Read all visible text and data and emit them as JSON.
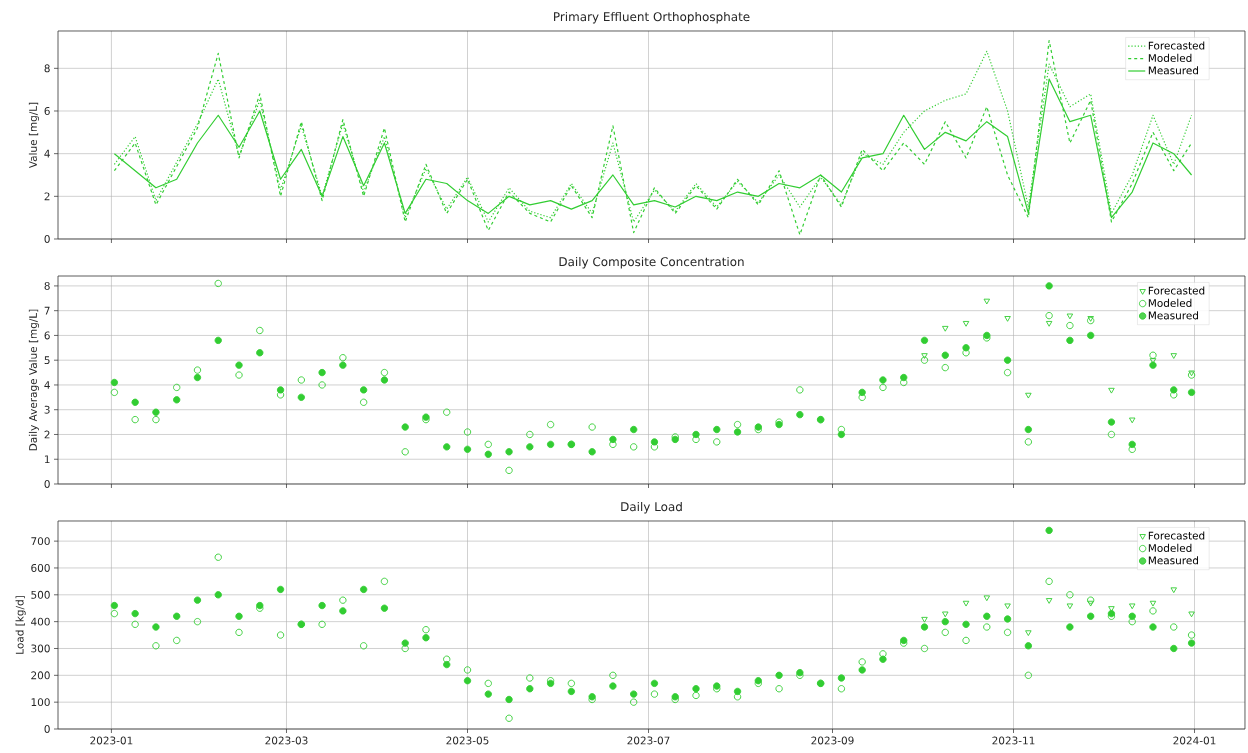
{
  "chart_data": [
    {
      "type": "line",
      "title": "Primary Effluent Orthophosphate",
      "ylabel": "Value [mg/L]",
      "x": [
        "2023-01-02",
        "2023-01-09",
        "2023-01-16",
        "2023-01-23",
        "2023-01-30",
        "2023-02-06",
        "2023-02-13",
        "2023-02-20",
        "2023-02-27",
        "2023-03-06",
        "2023-03-13",
        "2023-03-20",
        "2023-03-27",
        "2023-04-03",
        "2023-04-10",
        "2023-04-17",
        "2023-04-24",
        "2023-05-01",
        "2023-05-08",
        "2023-05-15",
        "2023-05-22",
        "2023-05-29",
        "2023-06-05",
        "2023-06-12",
        "2023-06-19",
        "2023-06-26",
        "2023-07-03",
        "2023-07-10",
        "2023-07-17",
        "2023-07-24",
        "2023-07-31",
        "2023-08-07",
        "2023-08-14",
        "2023-08-21",
        "2023-08-28",
        "2023-09-04",
        "2023-09-11",
        "2023-09-18",
        "2023-09-25",
        "2023-10-02",
        "2023-10-09",
        "2023-10-16",
        "2023-10-23",
        "2023-10-30",
        "2023-11-06",
        "2023-11-13",
        "2023-11-20",
        "2023-11-27",
        "2023-12-04",
        "2023-12-11",
        "2023-12-18",
        "2023-12-25",
        "2023-12-31"
      ],
      "series": [
        {
          "name": "Forecasted",
          "color": "#32cd32",
          "line_style": "dotted",
          "values": [
            3.5,
            4.8,
            1.8,
            3.6,
            5.4,
            7.5,
            3.9,
            6.5,
            2.3,
            5.3,
            2.0,
            5.4,
            2.2,
            4.8,
            1.0,
            3.3,
            1.4,
            2.9,
            0.8,
            2.4,
            1.3,
            1.0,
            2.6,
            1.2,
            4.5,
            0.8,
            2.3,
            1.3,
            2.6,
            1.5,
            2.7,
            1.7,
            3.0,
            1.5,
            2.9,
            1.6,
            4.0,
            3.5,
            5.0,
            6.0,
            6.5,
            6.8,
            8.8,
            6.0,
            1.5,
            8.2,
            6.2,
            6.8,
            1.2,
            3.0,
            5.8,
            3.5,
            5.8
          ]
        },
        {
          "name": "Modeled",
          "color": "#32cd32",
          "line_style": "dashed",
          "values": [
            3.2,
            4.5,
            1.6,
            3.4,
            5.2,
            8.7,
            3.8,
            6.8,
            2.0,
            5.5,
            1.8,
            5.6,
            2.0,
            5.2,
            0.8,
            3.5,
            1.2,
            2.8,
            0.4,
            2.2,
            1.2,
            0.8,
            2.5,
            1.0,
            5.3,
            0.3,
            2.4,
            1.2,
            2.5,
            1.4,
            2.8,
            1.6,
            3.2,
            0.2,
            3.0,
            1.5,
            4.2,
            3.2,
            4.5,
            3.5,
            5.5,
            3.8,
            6.2,
            3.0,
            1.0,
            9.3,
            4.5,
            6.5,
            0.8,
            2.6,
            5.0,
            3.2,
            4.5
          ]
        },
        {
          "name": "Measured",
          "color": "#32cd32",
          "line_style": "solid",
          "values": [
            4.0,
            3.2,
            2.4,
            2.8,
            4.5,
            5.8,
            4.3,
            6.0,
            2.8,
            4.2,
            2.0,
            4.8,
            2.5,
            4.5,
            1.2,
            2.8,
            2.6,
            1.8,
            1.2,
            2.0,
            1.6,
            1.8,
            1.4,
            1.8,
            3.0,
            1.6,
            1.8,
            1.5,
            2.0,
            1.8,
            2.2,
            2.0,
            2.6,
            2.4,
            3.0,
            2.2,
            3.8,
            4.0,
            5.8,
            4.2,
            5.0,
            4.6,
            5.5,
            4.8,
            1.2,
            7.5,
            5.5,
            5.8,
            1.0,
            2.2,
            4.5,
            4.0,
            3.0
          ]
        }
      ],
      "xlim": [
        "2022-12-14",
        "2024-01-18"
      ],
      "xticks": [
        {
          "value": "2023-01-01",
          "label": null
        },
        {
          "value": "2023-03-01",
          "label": null
        },
        {
          "value": "2023-05-01",
          "label": null
        },
        {
          "value": "2023-07-01",
          "label": null
        },
        {
          "value": "2023-09-01",
          "label": null
        },
        {
          "value": "2023-11-01",
          "label": null
        },
        {
          "value": "2024-01-01",
          "label": null
        }
      ],
      "ylim": [
        0,
        9.75
      ],
      "yticks": [
        0,
        2,
        4,
        6,
        8
      ],
      "grid": true,
      "legend": "top right",
      "tick_labels": "y"
    },
    {
      "type": "scatter",
      "title": "Daily Composite Concentration",
      "ylabel": "Daily Average Value [mg/L]",
      "x": [
        "2023-01-02",
        "2023-01-09",
        "2023-01-16",
        "2023-01-23",
        "2023-01-30",
        "2023-02-06",
        "2023-02-13",
        "2023-02-20",
        "2023-02-27",
        "2023-03-06",
        "2023-03-13",
        "2023-03-20",
        "2023-03-27",
        "2023-04-03",
        "2023-04-10",
        "2023-04-17",
        "2023-04-24",
        "2023-05-01",
        "2023-05-08",
        "2023-05-15",
        "2023-05-22",
        "2023-05-29",
        "2023-06-05",
        "2023-06-12",
        "2023-06-19",
        "2023-06-26",
        "2023-07-03",
        "2023-07-10",
        "2023-07-17",
        "2023-07-24",
        "2023-07-31",
        "2023-08-07",
        "2023-08-14",
        "2023-08-21",
        "2023-08-28",
        "2023-09-04",
        "2023-09-11",
        "2023-09-18",
        "2023-09-25",
        "2023-10-02",
        "2023-10-09",
        "2023-10-16",
        "2023-10-23",
        "2023-10-30",
        "2023-11-06",
        "2023-11-13",
        "2023-11-20",
        "2023-11-27",
        "2023-12-04",
        "2023-12-11",
        "2023-12-18",
        "2023-12-25",
        "2023-12-31"
      ],
      "series": [
        {
          "name": "Forecasted",
          "color": "#32cd32",
          "marker": "triangle",
          "values": [
            null,
            null,
            null,
            null,
            null,
            null,
            null,
            null,
            null,
            null,
            null,
            null,
            null,
            null,
            null,
            null,
            null,
            null,
            null,
            null,
            null,
            null,
            null,
            null,
            null,
            null,
            null,
            null,
            null,
            null,
            null,
            null,
            null,
            null,
            null,
            null,
            null,
            null,
            null,
            5.2,
            6.3,
            6.5,
            7.4,
            6.7,
            3.6,
            6.5,
            6.8,
            6.7,
            3.8,
            2.6,
            5.0,
            5.2,
            4.5
          ]
        },
        {
          "name": "Modeled",
          "color": "#32cd32",
          "marker": "circle",
          "values": [
            3.7,
            2.6,
            2.6,
            3.9,
            4.6,
            8.1,
            4.4,
            6.2,
            3.6,
            4.2,
            4.0,
            5.1,
            3.3,
            4.5,
            1.3,
            2.6,
            2.9,
            2.1,
            1.6,
            0.55,
            2.0,
            2.4,
            1.6,
            2.3,
            1.6,
            1.5,
            1.5,
            1.9,
            1.8,
            1.7,
            2.4,
            2.2,
            2.5,
            3.8,
            2.6,
            2.2,
            3.5,
            3.9,
            4.1,
            5.0,
            4.7,
            5.3,
            5.9,
            4.5,
            1.7,
            6.8,
            6.4,
            6.6,
            2.0,
            1.4,
            5.2,
            3.6,
            4.4
          ]
        },
        {
          "name": "Measured",
          "color": "#32cd32",
          "marker": "circle",
          "values": [
            4.1,
            3.3,
            2.9,
            3.4,
            4.3,
            5.8,
            4.8,
            5.3,
            3.8,
            3.5,
            4.5,
            4.8,
            3.8,
            4.2,
            2.3,
            2.7,
            1.5,
            1.4,
            1.2,
            1.3,
            1.5,
            1.6,
            1.6,
            1.3,
            1.8,
            2.2,
            1.7,
            1.8,
            2.0,
            2.2,
            2.1,
            2.3,
            2.4,
            2.8,
            2.6,
            2.0,
            3.7,
            4.2,
            4.3,
            5.8,
            5.2,
            5.5,
            6.0,
            5.0,
            2.2,
            8.0,
            5.8,
            6.0,
            2.5,
            1.6,
            4.8,
            3.8,
            3.7
          ]
        }
      ],
      "xlim": [
        "2022-12-14",
        "2024-01-18"
      ],
      "xticks": [
        {
          "value": "2023-01-01",
          "label": null
        },
        {
          "value": "2023-03-01",
          "label": null
        },
        {
          "value": "2023-05-01",
          "label": null
        },
        {
          "value": "2023-07-01",
          "label": null
        },
        {
          "value": "2023-09-01",
          "label": null
        },
        {
          "value": "2023-11-01",
          "label": null
        },
        {
          "value": "2024-01-01",
          "label": null
        }
      ],
      "ylim": [
        0,
        8.4
      ],
      "yticks": [
        0,
        1,
        2,
        3,
        4,
        5,
        6,
        7,
        8
      ],
      "grid": true,
      "legend": "top right",
      "tick_labels": "y"
    },
    {
      "type": "scatter",
      "title": "Daily Load",
      "ylabel": "Load [kg/d]",
      "x": [
        "2023-01-02",
        "2023-01-09",
        "2023-01-16",
        "2023-01-23",
        "2023-01-30",
        "2023-02-06",
        "2023-02-13",
        "2023-02-20",
        "2023-02-27",
        "2023-03-06",
        "2023-03-13",
        "2023-03-20",
        "2023-03-27",
        "2023-04-03",
        "2023-04-10",
        "2023-04-17",
        "2023-04-24",
        "2023-05-01",
        "2023-05-08",
        "2023-05-15",
        "2023-05-22",
        "2023-05-29",
        "2023-06-05",
        "2023-06-12",
        "2023-06-19",
        "2023-06-26",
        "2023-07-03",
        "2023-07-10",
        "2023-07-17",
        "2023-07-24",
        "2023-07-31",
        "2023-08-07",
        "2023-08-14",
        "2023-08-21",
        "2023-08-28",
        "2023-09-04",
        "2023-09-11",
        "2023-09-18",
        "2023-09-25",
        "2023-10-02",
        "2023-10-09",
        "2023-10-16",
        "2023-10-23",
        "2023-10-30",
        "2023-11-06",
        "2023-11-13",
        "2023-11-20",
        "2023-11-27",
        "2023-12-04",
        "2023-12-11",
        "2023-12-18",
        "2023-12-25",
        "2023-12-31"
      ],
      "series": [
        {
          "name": "Forecasted",
          "color": "#32cd32",
          "marker": "triangle",
          "values": [
            null,
            null,
            null,
            null,
            null,
            null,
            null,
            null,
            null,
            null,
            null,
            null,
            null,
            null,
            null,
            null,
            null,
            null,
            null,
            null,
            null,
            null,
            null,
            null,
            null,
            null,
            null,
            null,
            null,
            null,
            null,
            null,
            null,
            null,
            null,
            null,
            null,
            null,
            null,
            410,
            430,
            470,
            490,
            460,
            360,
            480,
            460,
            470,
            450,
            460,
            470,
            520,
            430
          ]
        },
        {
          "name": "Modeled",
          "color": "#32cd32",
          "marker": "circle",
          "values": [
            430,
            390,
            310,
            330,
            400,
            640,
            360,
            450,
            350,
            390,
            390,
            480,
            310,
            550,
            300,
            370,
            260,
            220,
            170,
            40,
            190,
            180,
            170,
            110,
            200,
            100,
            130,
            110,
            125,
            150,
            120,
            170,
            150,
            200,
            170,
            150,
            250,
            280,
            320,
            300,
            360,
            330,
            380,
            360,
            200,
            550,
            500,
            480,
            420,
            400,
            440,
            380,
            350
          ]
        },
        {
          "name": "Measured",
          "color": "#32cd32",
          "marker": "circle",
          "values": [
            460,
            430,
            380,
            420,
            480,
            500,
            420,
            460,
            520,
            390,
            460,
            440,
            520,
            450,
            320,
            340,
            240,
            180,
            130,
            110,
            150,
            170,
            140,
            120,
            160,
            130,
            170,
            120,
            150,
            160,
            140,
            180,
            200,
            210,
            170,
            190,
            220,
            260,
            330,
            380,
            400,
            390,
            420,
            410,
            310,
            740,
            380,
            420,
            430,
            420,
            380,
            300,
            320
          ]
        }
      ],
      "xlim": [
        "2022-12-14",
        "2024-01-18"
      ],
      "xticks": [
        {
          "value": "2023-01-01",
          "label": "2023-01"
        },
        {
          "value": "2023-03-01",
          "label": "2023-03"
        },
        {
          "value": "2023-05-01",
          "label": "2023-05"
        },
        {
          "value": "2023-07-01",
          "label": "2023-07"
        },
        {
          "value": "2023-09-01",
          "label": "2023-09"
        },
        {
          "value": "2023-11-01",
          "label": "2023-11"
        },
        {
          "value": "2024-01-01",
          "label": "2024-01"
        }
      ],
      "ylim": [
        0,
        775
      ],
      "yticks": [
        0,
        100,
        200,
        300,
        400,
        500,
        600,
        700
      ],
      "grid": true,
      "legend": "top right"
    }
  ]
}
